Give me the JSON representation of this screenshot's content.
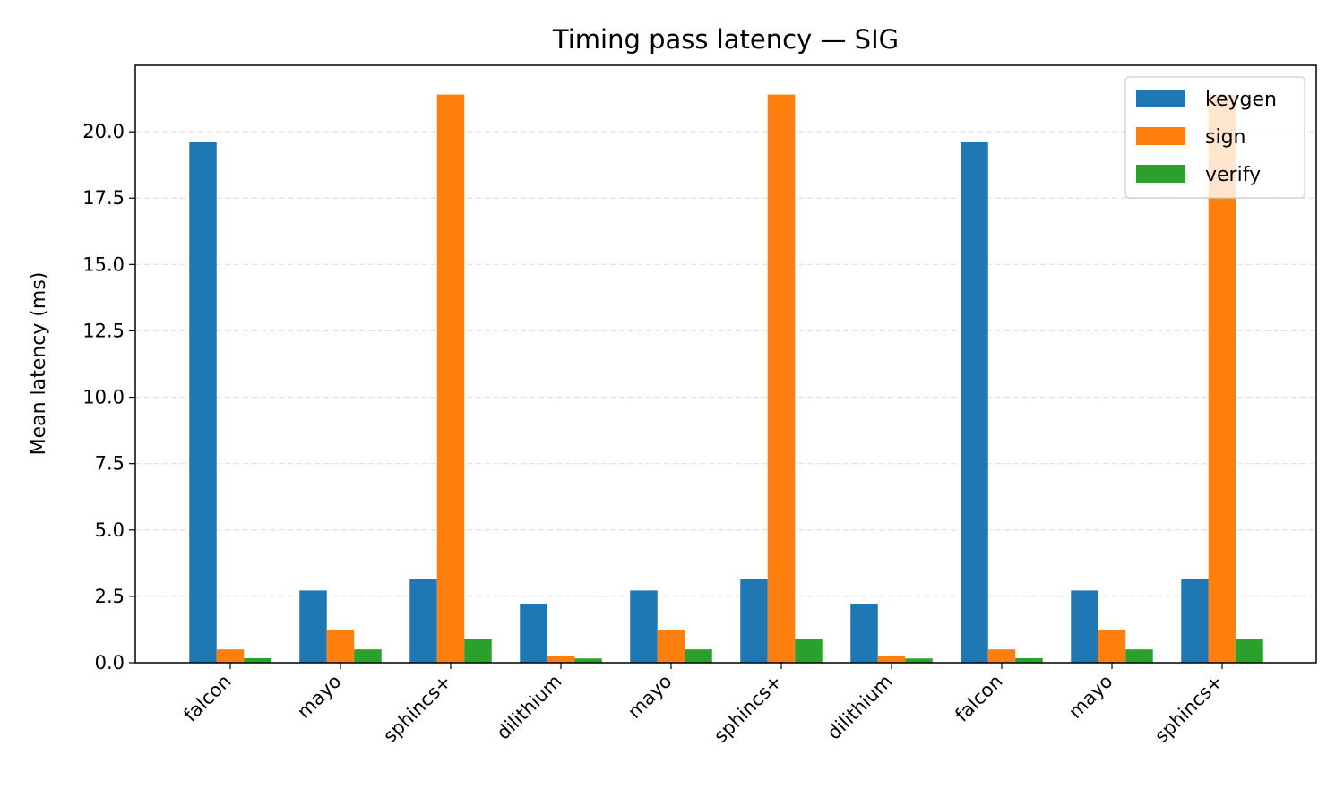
{
  "chart_data": {
    "type": "bar",
    "title": "Timing pass latency — SIG",
    "xlabel": "",
    "ylabel": "Mean latency (ms)",
    "ylim": [
      0,
      22.5
    ],
    "yticks": [
      "0.0",
      "2.5",
      "5.0",
      "7.5",
      "10.0",
      "12.5",
      "15.0",
      "17.5",
      "20.0"
    ],
    "grid": "horizontal dashed",
    "legend_position": "top-right",
    "categories": [
      "falcon",
      "mayo",
      "sphincs+",
      "dilithium",
      "mayo",
      "sphincs+",
      "dilithium",
      "falcon",
      "mayo",
      "sphincs+"
    ],
    "series": [
      {
        "name": "keygen",
        "color": "#1f77b4",
        "values": [
          19.6,
          2.72,
          3.15,
          2.22,
          2.72,
          3.15,
          2.22,
          19.6,
          2.72,
          3.15
        ]
      },
      {
        "name": "sign",
        "color": "#ff7f0e",
        "values": [
          0.5,
          1.25,
          21.4,
          0.27,
          1.25,
          21.4,
          0.27,
          0.5,
          1.25,
          21.4
        ]
      },
      {
        "name": "verify",
        "color": "#2ca02c",
        "values": [
          0.17,
          0.5,
          0.9,
          0.16,
          0.5,
          0.9,
          0.16,
          0.17,
          0.5,
          0.9
        ]
      }
    ]
  }
}
